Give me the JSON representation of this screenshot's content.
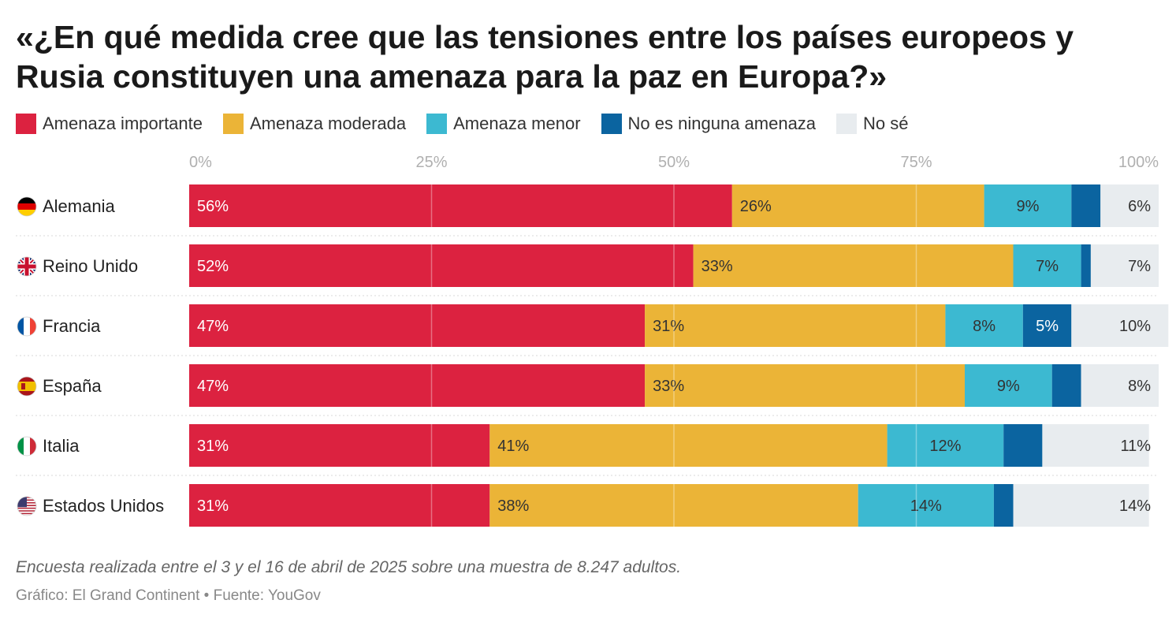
{
  "title": "«¿En qué medida cree que las tensiones entre los países europeos y Rusia constituyen una amenaza para la paz en Europa?»",
  "legend": [
    {
      "label": "Amenaza importante",
      "color": "#DC2240"
    },
    {
      "label": "Amenaza moderada",
      "color": "#EBB437"
    },
    {
      "label": "Amenaza menor",
      "color": "#3CB9D1"
    },
    {
      "label": "No es ninguna amenaza",
      "color": "#0B64A0"
    },
    {
      "label": "No sé",
      "color": "#E8ECEF"
    }
  ],
  "chart_data": {
    "type": "bar",
    "orientation": "horizontal",
    "stacked": true,
    "categories": [
      "Alemania",
      "Reino Unido",
      "Francia",
      "España",
      "Italia",
      "Estados Unidos"
    ],
    "category_icons": [
      "flag-germany-icon",
      "flag-uk-icon",
      "flag-france-icon",
      "flag-spain-icon",
      "flag-italy-icon",
      "flag-usa-icon"
    ],
    "series": [
      {
        "name": "Amenaza importante",
        "color": "#DC2240",
        "values": [
          56,
          52,
          47,
          47,
          31,
          31
        ],
        "labels": [
          "56%",
          "52%",
          "47%",
          "47%",
          "31%",
          "31%"
        ]
      },
      {
        "name": "Amenaza moderada",
        "color": "#EBB437",
        "values": [
          26,
          33,
          31,
          33,
          41,
          38
        ],
        "labels": [
          "26%",
          "33%",
          "31%",
          "33%",
          "41%",
          "38%"
        ]
      },
      {
        "name": "Amenaza menor",
        "color": "#3CB9D1",
        "values": [
          9,
          7,
          8,
          9,
          12,
          14
        ],
        "labels": [
          "9%",
          "7%",
          "8%",
          "9%",
          "12%",
          "14%"
        ]
      },
      {
        "name": "No es ninguna amenaza",
        "color": "#0B64A0",
        "values": [
          3,
          1,
          5,
          3,
          4,
          2
        ],
        "labels": [
          "",
          "",
          "5%",
          "",
          "",
          ""
        ]
      },
      {
        "name": "No sé",
        "color": "#E8ECEF",
        "values": [
          6,
          7,
          10,
          8,
          11,
          14
        ],
        "labels": [
          "6%",
          "7%",
          "10%",
          "8%",
          "11%",
          "14%"
        ]
      }
    ],
    "xlim": [
      0,
      100
    ],
    "xticks": [
      0,
      25,
      50,
      75,
      100
    ],
    "xtick_labels": [
      "0%",
      "25%",
      "50%",
      "75%",
      "100%"
    ],
    "grid": true
  },
  "note": "Encuesta realizada entre el 3 y el 16 de abril de 2025 sobre una muestra de 8.247 adultos.",
  "source": "Gráfico: El Grand Continent • Fuente: YouGov"
}
